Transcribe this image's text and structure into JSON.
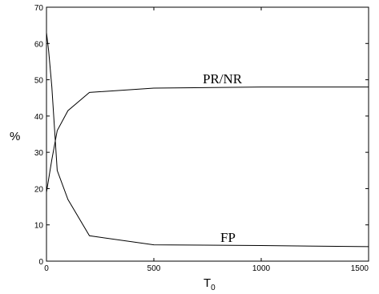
{
  "chart_data": {
    "type": "line",
    "title": "",
    "xlabel": "T",
    "xlabel_subscript": "0",
    "ylabel": "%",
    "xlim": [
      0,
      1500
    ],
    "ylim": [
      0,
      70
    ],
    "xticks": [
      "0",
      "500",
      "1000",
      "1500"
    ],
    "yticks": [
      "0",
      "10",
      "20",
      "30",
      "40",
      "50",
      "60",
      "70"
    ],
    "grid": false,
    "series": [
      {
        "name": "PR/NR",
        "x": [
          0,
          25,
          50,
          100,
          200,
          500,
          1000,
          1500
        ],
        "y": [
          19,
          28,
          36,
          41.5,
          46.5,
          47.7,
          48,
          48
        ]
      },
      {
        "name": "FP",
        "x": [
          0,
          10,
          25,
          50,
          100,
          200,
          500,
          1000,
          1500
        ],
        "y": [
          63,
          58,
          48,
          25,
          17,
          7,
          4.5,
          4.3,
          4
        ]
      }
    ]
  }
}
